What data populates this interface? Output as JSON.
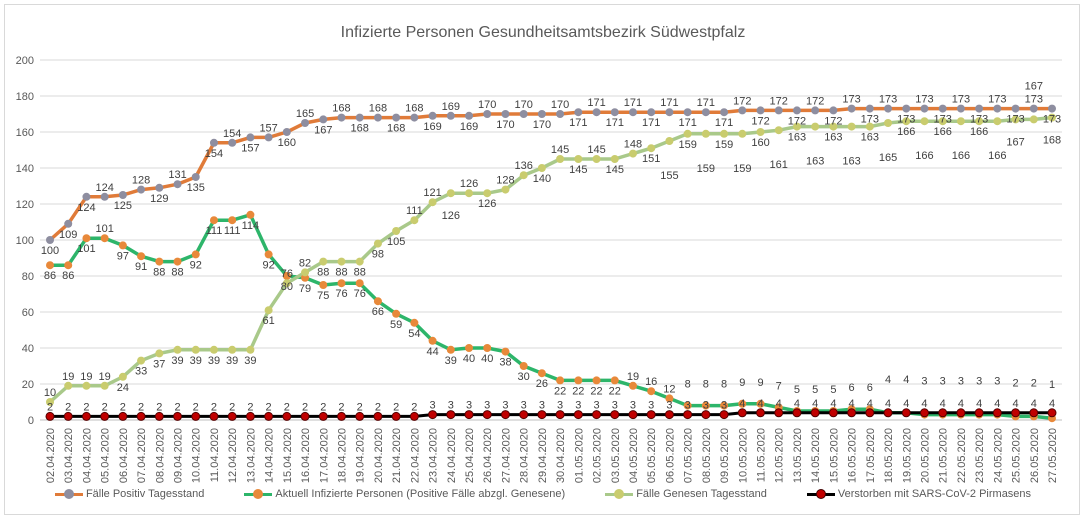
{
  "chart_data": {
    "type": "line",
    "title": "Infizierte Personen Gesundheitsamtsbezirk Südwestpfalz",
    "xlabel": "",
    "ylabel": "",
    "ylim": [
      0,
      200
    ],
    "yticks": [
      0,
      20,
      40,
      60,
      80,
      100,
      120,
      140,
      160,
      180,
      200
    ],
    "grid": true,
    "legend_position": "bottom",
    "categories": [
      "02.04.2020",
      "03.04.2020",
      "04.04.2020",
      "05.04.2020",
      "06.04.2020",
      "07.04.2020",
      "08.04.2020",
      "09.04.2020",
      "10.04.2020",
      "11.04.2020",
      "12.04.2020",
      "13.04.2020",
      "14.04.2020",
      "15.04.2020",
      "16.04.2020",
      "17.04.2020",
      "18.04.2020",
      "19.04.2020",
      "20.04.2020",
      "21.04.2020",
      "22.04.2020",
      "23.04.2020",
      "24.04.2020",
      "25.04.2020",
      "26.04.2020",
      "27.04.2020",
      "28.04.2020",
      "29.04.2020",
      "30.04.2020",
      "01.05.2020",
      "02.05.2020",
      "03.05.2020",
      "04.05.2020",
      "05.05.2020",
      "06.05.2020",
      "07.05.2020",
      "08.05.2020",
      "09.05.2020",
      "10.05.2020",
      "11.05.2020",
      "12.05.2020",
      "13.05.2020",
      "14.05.2020",
      "15.05.2020",
      "16.05.2020",
      "17.05.2020",
      "18.05.2020",
      "19.05.2020",
      "20.05.2020",
      "21.05.2020",
      "22.05.2020",
      "23.05.2020",
      "24.05.2020",
      "25.05.2020",
      "26.05.2020",
      "27.05.2020"
    ],
    "series": [
      {
        "name": "Fälle Positiv Tagesstand",
        "line_color": "#E07B39",
        "marker_color": "#8E8EA0",
        "values": [
          100,
          109,
          124,
          124,
          125,
          128,
          129,
          131,
          135,
          154,
          154,
          157,
          157,
          160,
          165,
          167,
          168,
          168,
          168,
          168,
          168,
          169,
          169,
          169,
          170,
          170,
          170,
          170,
          170,
          171,
          171,
          171,
          171,
          171,
          171,
          171,
          171,
          171,
          172,
          172,
          172,
          172,
          172,
          172,
          173,
          173,
          173,
          173,
          173,
          173,
          173,
          173,
          173,
          173,
          173,
          173
        ]
      },
      {
        "name": "Aktuell Infizierte Personen (Positive Fälle abzgl. Genesene)",
        "line_color": "#2DB56A",
        "marker_color": "#E8893A",
        "values": [
          86,
          86,
          101,
          101,
          97,
          91,
          88,
          88,
          92,
          111,
          111,
          114,
          92,
          80,
          79,
          75,
          76,
          76,
          66,
          59,
          54,
          44,
          39,
          40,
          40,
          38,
          30,
          26,
          22,
          22,
          22,
          22,
          19,
          16,
          12,
          8,
          8,
          8,
          9,
          9,
          7,
          5,
          5,
          5,
          6,
          6,
          4,
          4,
          3,
          3,
          3,
          3,
          3,
          2,
          2,
          1
        ]
      },
      {
        "name": "Fälle Genesen Tagesstand",
        "line_color": "#A9C98A",
        "marker_color": "#C9CC6E",
        "values": [
          10,
          19,
          19,
          19,
          24,
          33,
          37,
          39,
          39,
          39,
          39,
          39,
          61,
          76,
          82,
          88,
          88,
          88,
          98,
          105,
          111,
          121,
          126,
          126,
          126,
          128,
          136,
          140,
          145,
          145,
          145,
          145,
          148,
          151,
          155,
          159,
          159,
          159,
          159,
          160,
          161,
          163,
          163,
          163,
          163,
          163,
          165,
          166,
          166,
          166,
          166,
          166,
          166,
          167,
          167,
          168
        ]
      },
      {
        "name": "Verstorben mit SARS-CoV-2 Pirmasens",
        "line_color": "#000000",
        "marker_color": "#C00000",
        "values": [
          2,
          2,
          2,
          2,
          2,
          2,
          2,
          2,
          2,
          2,
          2,
          2,
          2,
          2,
          2,
          2,
          2,
          2,
          2,
          2,
          2,
          3,
          3,
          3,
          3,
          3,
          3,
          3,
          3,
          3,
          3,
          3,
          3,
          3,
          3,
          3,
          3,
          3,
          4,
          4,
          4,
          4,
          4,
          4,
          4,
          4,
          4,
          4,
          4,
          4,
          4,
          4,
          4,
          4,
          4,
          4
        ]
      }
    ]
  }
}
